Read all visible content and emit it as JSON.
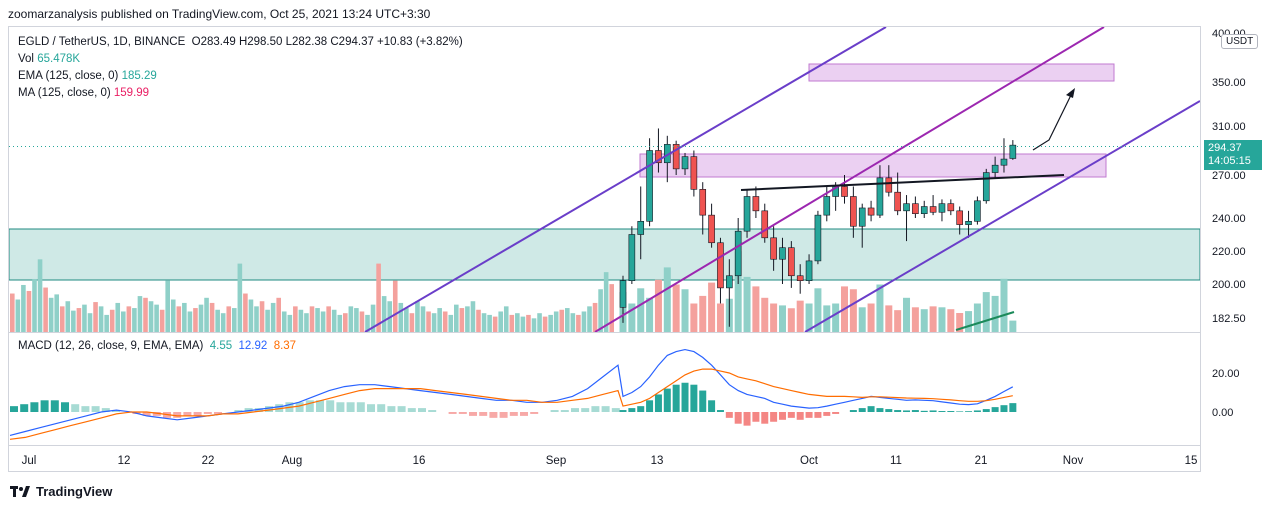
{
  "publisher_line": "zoomarzanalysis published on TradingView.com, Oct 25, 2021 13:24 UTC+3:30",
  "symbol_line": {
    "symbol": "EGLD / TetherUS, 1D, BINANCE",
    "ohlc": "O283.49  H298.50  L282.38  C294.37  +10.83 (+3.82%)"
  },
  "legend": {
    "vol_label": "Vol",
    "vol_value": "65.478K",
    "ema_label": "EMA (125, close, 0)",
    "ema_value": "185.29",
    "ma_label": "MA (125, close, 0)",
    "ma_value": "159.99"
  },
  "macd_legend": {
    "label": "MACD (12, 26, close, 9, EMA, EMA)",
    "v1": "4.55",
    "v2": "12.92",
    "v3": "8.37"
  },
  "currency_badge": "USDT",
  "last_price": "294.37",
  "countdown": "14:05:15",
  "brand": "TradingView",
  "colors": {
    "up": "#26a69a",
    "down": "#ef5350",
    "macd": "#2962ff",
    "signal": "#ff6d00",
    "channel": "#7e3ff2",
    "zone": "#cfe9e6"
  },
  "chart_data": {
    "type": "candlestick",
    "title": "EGLD / TetherUS, 1D, BINANCE",
    "x_ticks": [
      "Jul",
      "12",
      "22",
      "Aug",
      "16",
      "Sep",
      "13",
      "Oct",
      "11",
      "21",
      "Nov",
      "15"
    ],
    "price_ticks": [
      182.5,
      200.0,
      220.0,
      240.0,
      270.0,
      310.0,
      350.0,
      400.0
    ],
    "price_ticks_labels": [
      "182.50",
      "200.00",
      "220.00",
      "240.00",
      "270.00",
      "310.00",
      "350.00",
      "400.00"
    ],
    "macd_ticks": [
      0,
      20
    ],
    "macd_ticks_labels": [
      "0.00",
      "20.00"
    ],
    "candles_visible": [
      {
        "o": 188,
        "h": 205,
        "l": 180,
        "c": 202
      },
      {
        "o": 202,
        "h": 235,
        "l": 200,
        "c": 230
      },
      {
        "o": 230,
        "h": 262,
        "l": 215,
        "c": 238
      },
      {
        "o": 238,
        "h": 300,
        "l": 235,
        "c": 290
      },
      {
        "o": 290,
        "h": 308,
        "l": 272,
        "c": 280
      },
      {
        "o": 280,
        "h": 302,
        "l": 265,
        "c": 295
      },
      {
        "o": 295,
        "h": 298,
        "l": 270,
        "c": 275
      },
      {
        "o": 275,
        "h": 288,
        "l": 270,
        "c": 285
      },
      {
        "o": 285,
        "h": 290,
        "l": 255,
        "c": 260
      },
      {
        "o": 260,
        "h": 265,
        "l": 230,
        "c": 242
      },
      {
        "o": 242,
        "h": 250,
        "l": 222,
        "c": 225
      },
      {
        "o": 225,
        "h": 228,
        "l": 190,
        "c": 198
      },
      {
        "o": 198,
        "h": 215,
        "l": 178,
        "c": 205
      },
      {
        "o": 205,
        "h": 240,
        "l": 200,
        "c": 232
      },
      {
        "o": 232,
        "h": 260,
        "l": 228,
        "c": 255
      },
      {
        "o": 255,
        "h": 262,
        "l": 240,
        "c": 245
      },
      {
        "o": 245,
        "h": 250,
        "l": 225,
        "c": 228
      },
      {
        "o": 228,
        "h": 235,
        "l": 208,
        "c": 215
      },
      {
        "o": 215,
        "h": 228,
        "l": 200,
        "c": 222
      },
      {
        "o": 222,
        "h": 226,
        "l": 198,
        "c": 205
      },
      {
        "o": 205,
        "h": 212,
        "l": 195,
        "c": 202
      },
      {
        "o": 202,
        "h": 218,
        "l": 200,
        "c": 214
      },
      {
        "o": 214,
        "h": 245,
        "l": 212,
        "c": 242
      },
      {
        "o": 242,
        "h": 262,
        "l": 238,
        "c": 255
      },
      {
        "o": 255,
        "h": 265,
        "l": 245,
        "c": 262
      },
      {
        "o": 262,
        "h": 270,
        "l": 250,
        "c": 255
      },
      {
        "o": 255,
        "h": 262,
        "l": 228,
        "c": 235
      },
      {
        "o": 235,
        "h": 250,
        "l": 222,
        "c": 247
      },
      {
        "o": 247,
        "h": 252,
        "l": 238,
        "c": 242
      },
      {
        "o": 242,
        "h": 278,
        "l": 240,
        "c": 268
      },
      {
        "o": 268,
        "h": 278,
        "l": 255,
        "c": 258
      },
      {
        "o": 258,
        "h": 272,
        "l": 242,
        "c": 245
      },
      {
        "o": 245,
        "h": 256,
        "l": 226,
        "c": 250
      },
      {
        "o": 250,
        "h": 255,
        "l": 240,
        "c": 243
      },
      {
        "o": 243,
        "h": 252,
        "l": 240,
        "c": 248
      },
      {
        "o": 248,
        "h": 256,
        "l": 242,
        "c": 244
      },
      {
        "o": 244,
        "h": 253,
        "l": 238,
        "c": 250
      },
      {
        "o": 250,
        "h": 253,
        "l": 242,
        "c": 245
      },
      {
        "o": 245,
        "h": 248,
        "l": 230,
        "c": 236
      },
      {
        "o": 236,
        "h": 245,
        "l": 228,
        "c": 238
      },
      {
        "o": 238,
        "h": 255,
        "l": 236,
        "c": 252
      },
      {
        "o": 252,
        "h": 275,
        "l": 250,
        "c": 272
      },
      {
        "o": 272,
        "h": 285,
        "l": 268,
        "c": 278
      },
      {
        "o": 278,
        "h": 300,
        "l": 272,
        "c": 283
      },
      {
        "o": 283.49,
        "h": 298.5,
        "l": 282.38,
        "c": 294.37
      }
    ],
    "volume": [
      0.42,
      0.3,
      0.46,
      0.36,
      0.55,
      0.68,
      0.5,
      0.45,
      0.3,
      0.38,
      0.52,
      0.3,
      0.35,
      0.85,
      0.58,
      0.48,
      0.36,
      0.3,
      0.28,
      0.25,
      0.33,
      0.3,
      0.46,
      0.28,
      0.3,
      0.48,
      0.45,
      0.26,
      0.3,
      0.5,
      0.28,
      0.23,
      0.36,
      0.26,
      0.24,
      0.27,
      0.26,
      0.24,
      0.2,
      0.22,
      0.3,
      0.42,
      0.38,
      0.56,
      0.12
    ],
    "macd": [
      1,
      2,
      3,
      6,
      9,
      12,
      14,
      15,
      14,
      11,
      6,
      1,
      -3,
      -6,
      -7,
      -5,
      -6,
      -5,
      -4,
      -3,
      -4,
      -3,
      -3,
      -2,
      -1,
      0,
      1,
      2,
      3,
      2,
      1.5,
      1,
      0.8,
      1,
      0.6,
      0.8,
      0.5,
      0.5,
      0.3,
      0.4,
      0.8,
      1.5,
      2.5,
      3.5,
      4.55
    ],
    "macd_line": [
      8,
      10,
      13,
      18,
      24,
      29,
      31,
      32,
      31,
      28,
      24,
      19,
      14,
      11,
      9,
      8,
      7,
      5,
      4,
      3,
      2.5,
      2,
      2.2,
      3,
      4,
      5,
      6,
      7,
      8,
      7.5,
      7,
      6.5,
      6,
      6.2,
      6,
      5.8,
      5.2,
      4.6,
      4,
      3.8,
      4.2,
      6,
      8,
      10.5,
      12.92
    ],
    "signal_line": [
      3,
      4,
      5,
      7,
      10,
      13,
      16,
      19,
      21,
      22,
      22,
      21,
      20,
      18,
      17,
      16,
      14.5,
      13,
      12,
      11,
      10,
      9,
      8.5,
      8,
      8,
      8,
      7.8,
      7.5,
      7.8,
      7.8,
      7.6,
      7.4,
      7.2,
      7.1,
      7,
      6.8,
      6.5,
      6.2,
      5.8,
      5.5,
      5.5,
      5.8,
      6.5,
      7.5,
      8.37
    ]
  }
}
